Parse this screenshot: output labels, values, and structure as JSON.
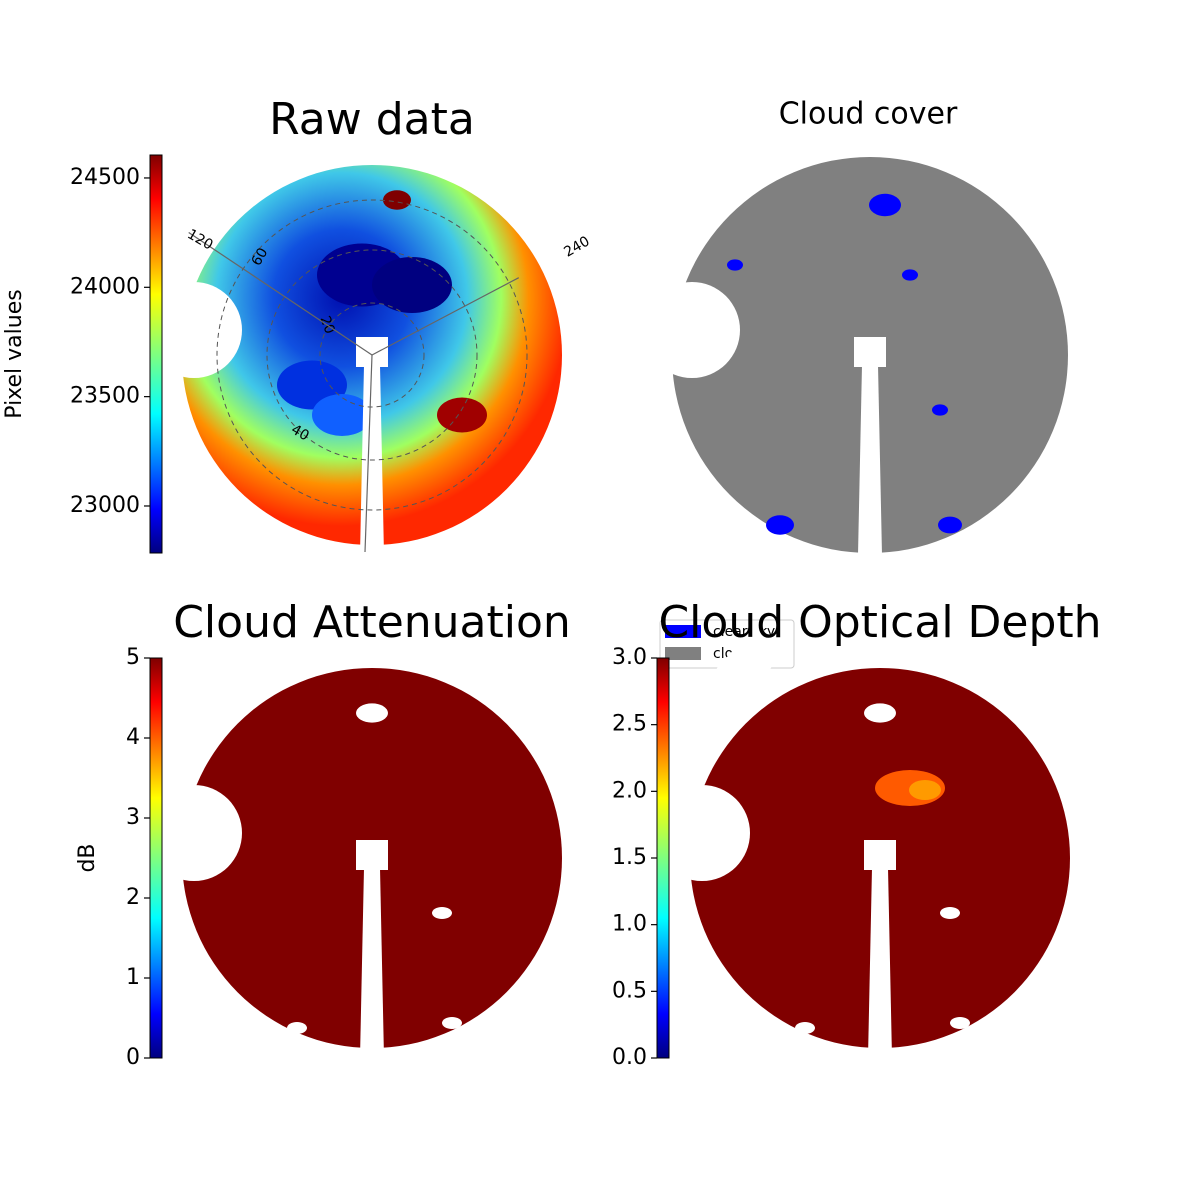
{
  "chart_data": [
    {
      "type": "image",
      "title": "Raw data",
      "ylabel": "Pixel values",
      "colormap": "jet",
      "ylim": [
        22785,
        24605
      ],
      "yticks": [
        23000,
        23500,
        24000,
        24500
      ],
      "azimuth_ticks": [
        120,
        240
      ],
      "zenith_ticks": [
        20,
        40,
        60
      ]
    },
    {
      "type": "image",
      "title": "Cloud cover",
      "legend": "upper left",
      "series": [
        {
          "name": "clear sky",
          "color": "#0000ff"
        },
        {
          "name": "cloud",
          "color": "#808080"
        }
      ]
    },
    {
      "type": "image",
      "title": "Cloud Attenuation",
      "ylabel": "dB",
      "colormap": "jet",
      "ylim": [
        0,
        5
      ],
      "yticks": [
        0,
        1,
        2,
        3,
        4,
        5
      ]
    },
    {
      "type": "image",
      "title": "Cloud Optical Depth",
      "colormap": "jet",
      "ylim": [
        0,
        3
      ],
      "yticks": [
        {
          "value": 0,
          "label": "0.0"
        },
        {
          "value": 0.5,
          "label": "0.5"
        },
        {
          "value": 1,
          "label": "1.0"
        },
        {
          "value": 1.5,
          "label": "1.5"
        },
        {
          "value": 2,
          "label": "2.0"
        },
        {
          "value": 2.5,
          "label": "2.5"
        },
        {
          "value": 3,
          "label": "3.0"
        }
      ]
    }
  ]
}
